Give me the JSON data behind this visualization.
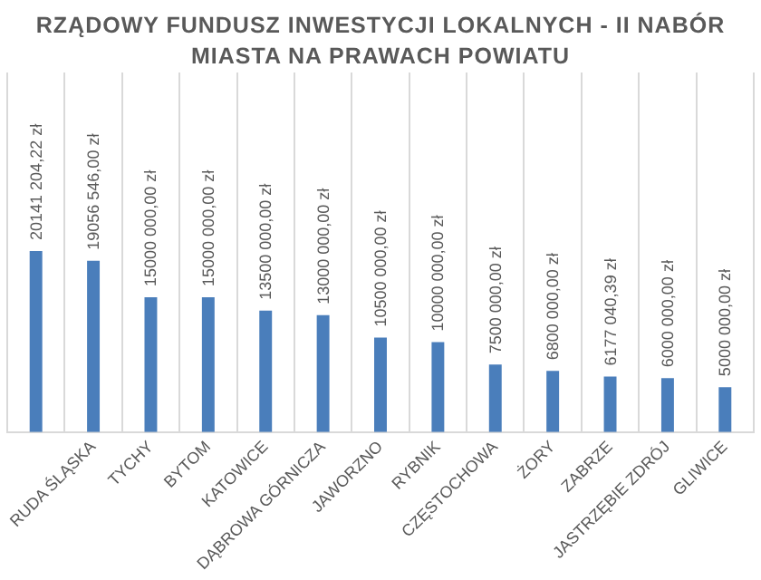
{
  "chart_data": {
    "type": "bar",
    "title": "RZĄDOWY FUNDUSZ INWESTYCJI LOKALNYCH - II NABÓR",
    "subtitle": "MIASTA NA PRAWACH POWIATU",
    "categories": [
      null,
      "RUDA ŚLĄSKA",
      "TYCHY",
      "BYTOM",
      "KATOWICE",
      "DĄBROWA GÓRNICZA",
      "JAWORZNO",
      "RYBNIK",
      "CZĘSTOCHOWA",
      "ŻORY",
      "ZABRZE",
      "JASTRZĘBIE ZDRÓJ",
      "GLIWICE"
    ],
    "values": [
      20141204.22,
      19056546,
      15000000,
      15000000,
      13500000,
      13000000,
      10500000,
      10000000,
      7500000,
      6800000,
      6177040.39,
      6000000,
      5000000
    ],
    "value_labels": [
      "20141 204,22 zł",
      "19056 546,00 zł",
      "15000 000,00 zł",
      "15000 000,00 zł",
      "13500 000,00 zł",
      "13000 000,00 zł",
      "10500 000,00 zł",
      "10000 000,00 zł",
      "7500 000,00 zł",
      "6800 000,00 zł",
      "6177 040,39 zł",
      "6000 000,00 zł",
      "5000 000,00 zł"
    ],
    "color": "#4a7ebb",
    "ylim": [
      0,
      40000000
    ],
    "grid": "x",
    "legend": false
  }
}
